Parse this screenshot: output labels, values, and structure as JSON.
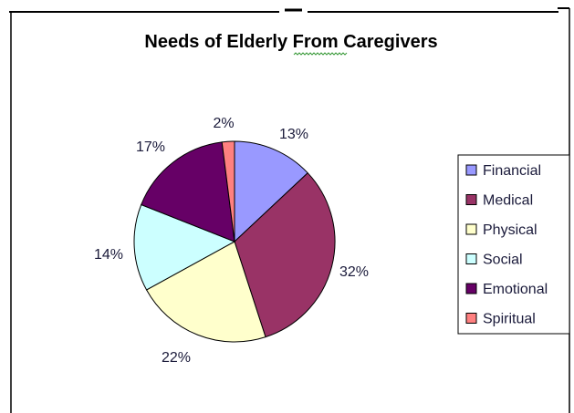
{
  "chart_data": {
    "type": "pie",
    "title": "Needs of Elderly From Caregivers",
    "legend_position": "right",
    "slices": [
      {
        "label": "Financial",
        "value": 13,
        "value_label": "13%",
        "color": "#9999ff"
      },
      {
        "label": "Medical",
        "value": 32,
        "value_label": "32%",
        "color": "#993366"
      },
      {
        "label": "Physical",
        "value": 22,
        "value_label": "22%",
        "color": "#ffffcc"
      },
      {
        "label": "Social",
        "value": 14,
        "value_label": "14%",
        "color": "#ccffff"
      },
      {
        "label": "Emotional",
        "value": 17,
        "value_label": "17%",
        "color": "#660066"
      },
      {
        "label": "Spiritual",
        "value": 2,
        "value_label": "2%",
        "color": "#ff8080"
      }
    ]
  }
}
